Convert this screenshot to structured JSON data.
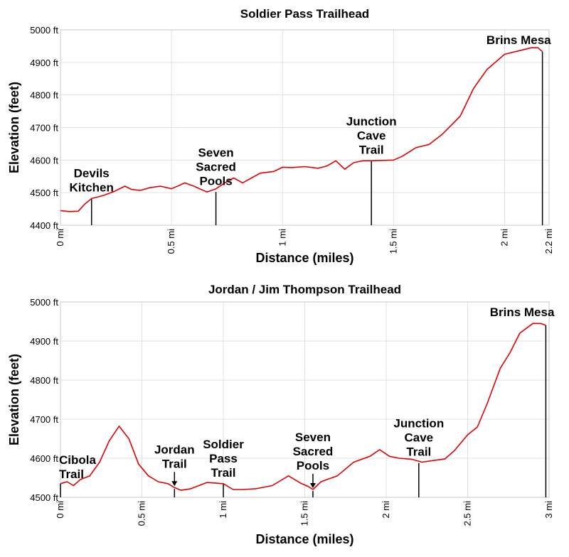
{
  "chart_data": [
    {
      "type": "line",
      "title": "Soldier Pass Trailhead",
      "xlabel": "Distance (miles)",
      "ylabel": "Elevation (feet)",
      "xlim": [
        0,
        2.2
      ],
      "ylim": [
        4400,
        5000
      ],
      "x_ticks": [
        "0 mi",
        "0.5 mi",
        "1 mi",
        "1.5 mi",
        "2 mi",
        "2.2 mi"
      ],
      "y_ticks": [
        "4400 ft",
        "4500 ft",
        "4600 ft",
        "4700 ft",
        "4800 ft",
        "4900 ft",
        "5000 ft"
      ],
      "grid": true,
      "color": "#e00000",
      "x": [
        0,
        0.04,
        0.08,
        0.11,
        0.14,
        0.17,
        0.2,
        0.24,
        0.29,
        0.32,
        0.36,
        0.4,
        0.45,
        0.5,
        0.56,
        0.6,
        0.66,
        0.7,
        0.74,
        0.78,
        0.82,
        0.86,
        0.9,
        0.96,
        1.0,
        1.04,
        1.1,
        1.16,
        1.2,
        1.24,
        1.28,
        1.32,
        1.36,
        1.4,
        1.5,
        1.54,
        1.6,
        1.66,
        1.72,
        1.8,
        1.86,
        1.92,
        2.0,
        2.06,
        2.12,
        2.15,
        2.17
      ],
      "y": [
        4445,
        4442,
        4443,
        4465,
        4482,
        4487,
        4493,
        4503,
        4520,
        4510,
        4507,
        4515,
        4520,
        4512,
        4530,
        4520,
        4502,
        4512,
        4530,
        4545,
        4530,
        4545,
        4560,
        4565,
        4578,
        4577,
        4580,
        4575,
        4582,
        4598,
        4572,
        4592,
        4598,
        4598,
        4600,
        4612,
        4638,
        4648,
        4680,
        4735,
        4820,
        4878,
        4925,
        4935,
        4945,
        4945,
        4933
      ],
      "annotations": [
        {
          "label": [
            "Devils",
            "Kitchen"
          ],
          "x": 0.14,
          "y": 4482
        },
        {
          "label": [
            "Seven",
            "Sacred",
            "Pools"
          ],
          "x": 0.7,
          "y": 4502
        },
        {
          "label": [
            "Junction",
            "Cave",
            "Trail"
          ],
          "x": 1.4,
          "y": 4598
        },
        {
          "label": [
            "Brins Mesa"
          ],
          "x": 2.17,
          "y": 4933
        }
      ]
    },
    {
      "type": "line",
      "title": "Jordan / Jim Thompson Trailhead",
      "xlabel": "Distance (miles)",
      "ylabel": "Elevation (feet)",
      "xlim": [
        0,
        3
      ],
      "ylim": [
        4500,
        5000
      ],
      "x_ticks": [
        "0 mi",
        "0.5 mi",
        "1 mi",
        "1.5 mi",
        "2 mi",
        "2.5 mi",
        "3 mi"
      ],
      "y_ticks": [
        "4500 ft",
        "4600 ft",
        "4700 ft",
        "4800 ft",
        "4900 ft",
        "5000 ft"
      ],
      "grid": true,
      "color": "#e00000",
      "x": [
        0,
        0.04,
        0.08,
        0.12,
        0.18,
        0.24,
        0.3,
        0.36,
        0.42,
        0.48,
        0.54,
        0.6,
        0.66,
        0.7,
        0.74,
        0.8,
        0.9,
        1.0,
        1.06,
        1.12,
        1.2,
        1.3,
        1.4,
        1.48,
        1.52,
        1.55,
        1.6,
        1.7,
        1.8,
        1.9,
        1.96,
        2.02,
        2.08,
        2.16,
        2.22,
        2.3,
        2.36,
        2.42,
        2.5,
        2.56,
        2.62,
        2.7,
        2.76,
        2.82,
        2.9,
        2.95,
        2.98
      ],
      "y": [
        4535,
        4540,
        4530,
        4545,
        4555,
        4590,
        4645,
        4682,
        4650,
        4585,
        4555,
        4540,
        4535,
        4525,
        4518,
        4522,
        4538,
        4535,
        4520,
        4520,
        4522,
        4530,
        4555,
        4535,
        4528,
        4520,
        4540,
        4555,
        4590,
        4605,
        4622,
        4605,
        4600,
        4597,
        4590,
        4595,
        4598,
        4620,
        4660,
        4680,
        4740,
        4830,
        4870,
        4920,
        4945,
        4945,
        4940
      ],
      "annotations": [
        {
          "label": [
            "Cibola",
            "Trail"
          ],
          "x": 0.0,
          "y": 4535
        },
        {
          "label": [
            "Jordan",
            "Trail"
          ],
          "x": 0.7,
          "y": 4525,
          "arrow": true
        },
        {
          "label": [
            "Soldier",
            "Pass",
            "Trail"
          ],
          "x": 1.0,
          "y": 4535
        },
        {
          "label": [
            "Seven",
            "Sacred",
            "Pools"
          ],
          "x": 1.55,
          "y": 4520,
          "arrow": true
        },
        {
          "label": [
            "Junction",
            "Cave",
            "Trail"
          ],
          "x": 2.2,
          "y": 4588
        },
        {
          "label": [
            "Brins Mesa"
          ],
          "x": 2.98,
          "y": 4940
        }
      ]
    }
  ]
}
